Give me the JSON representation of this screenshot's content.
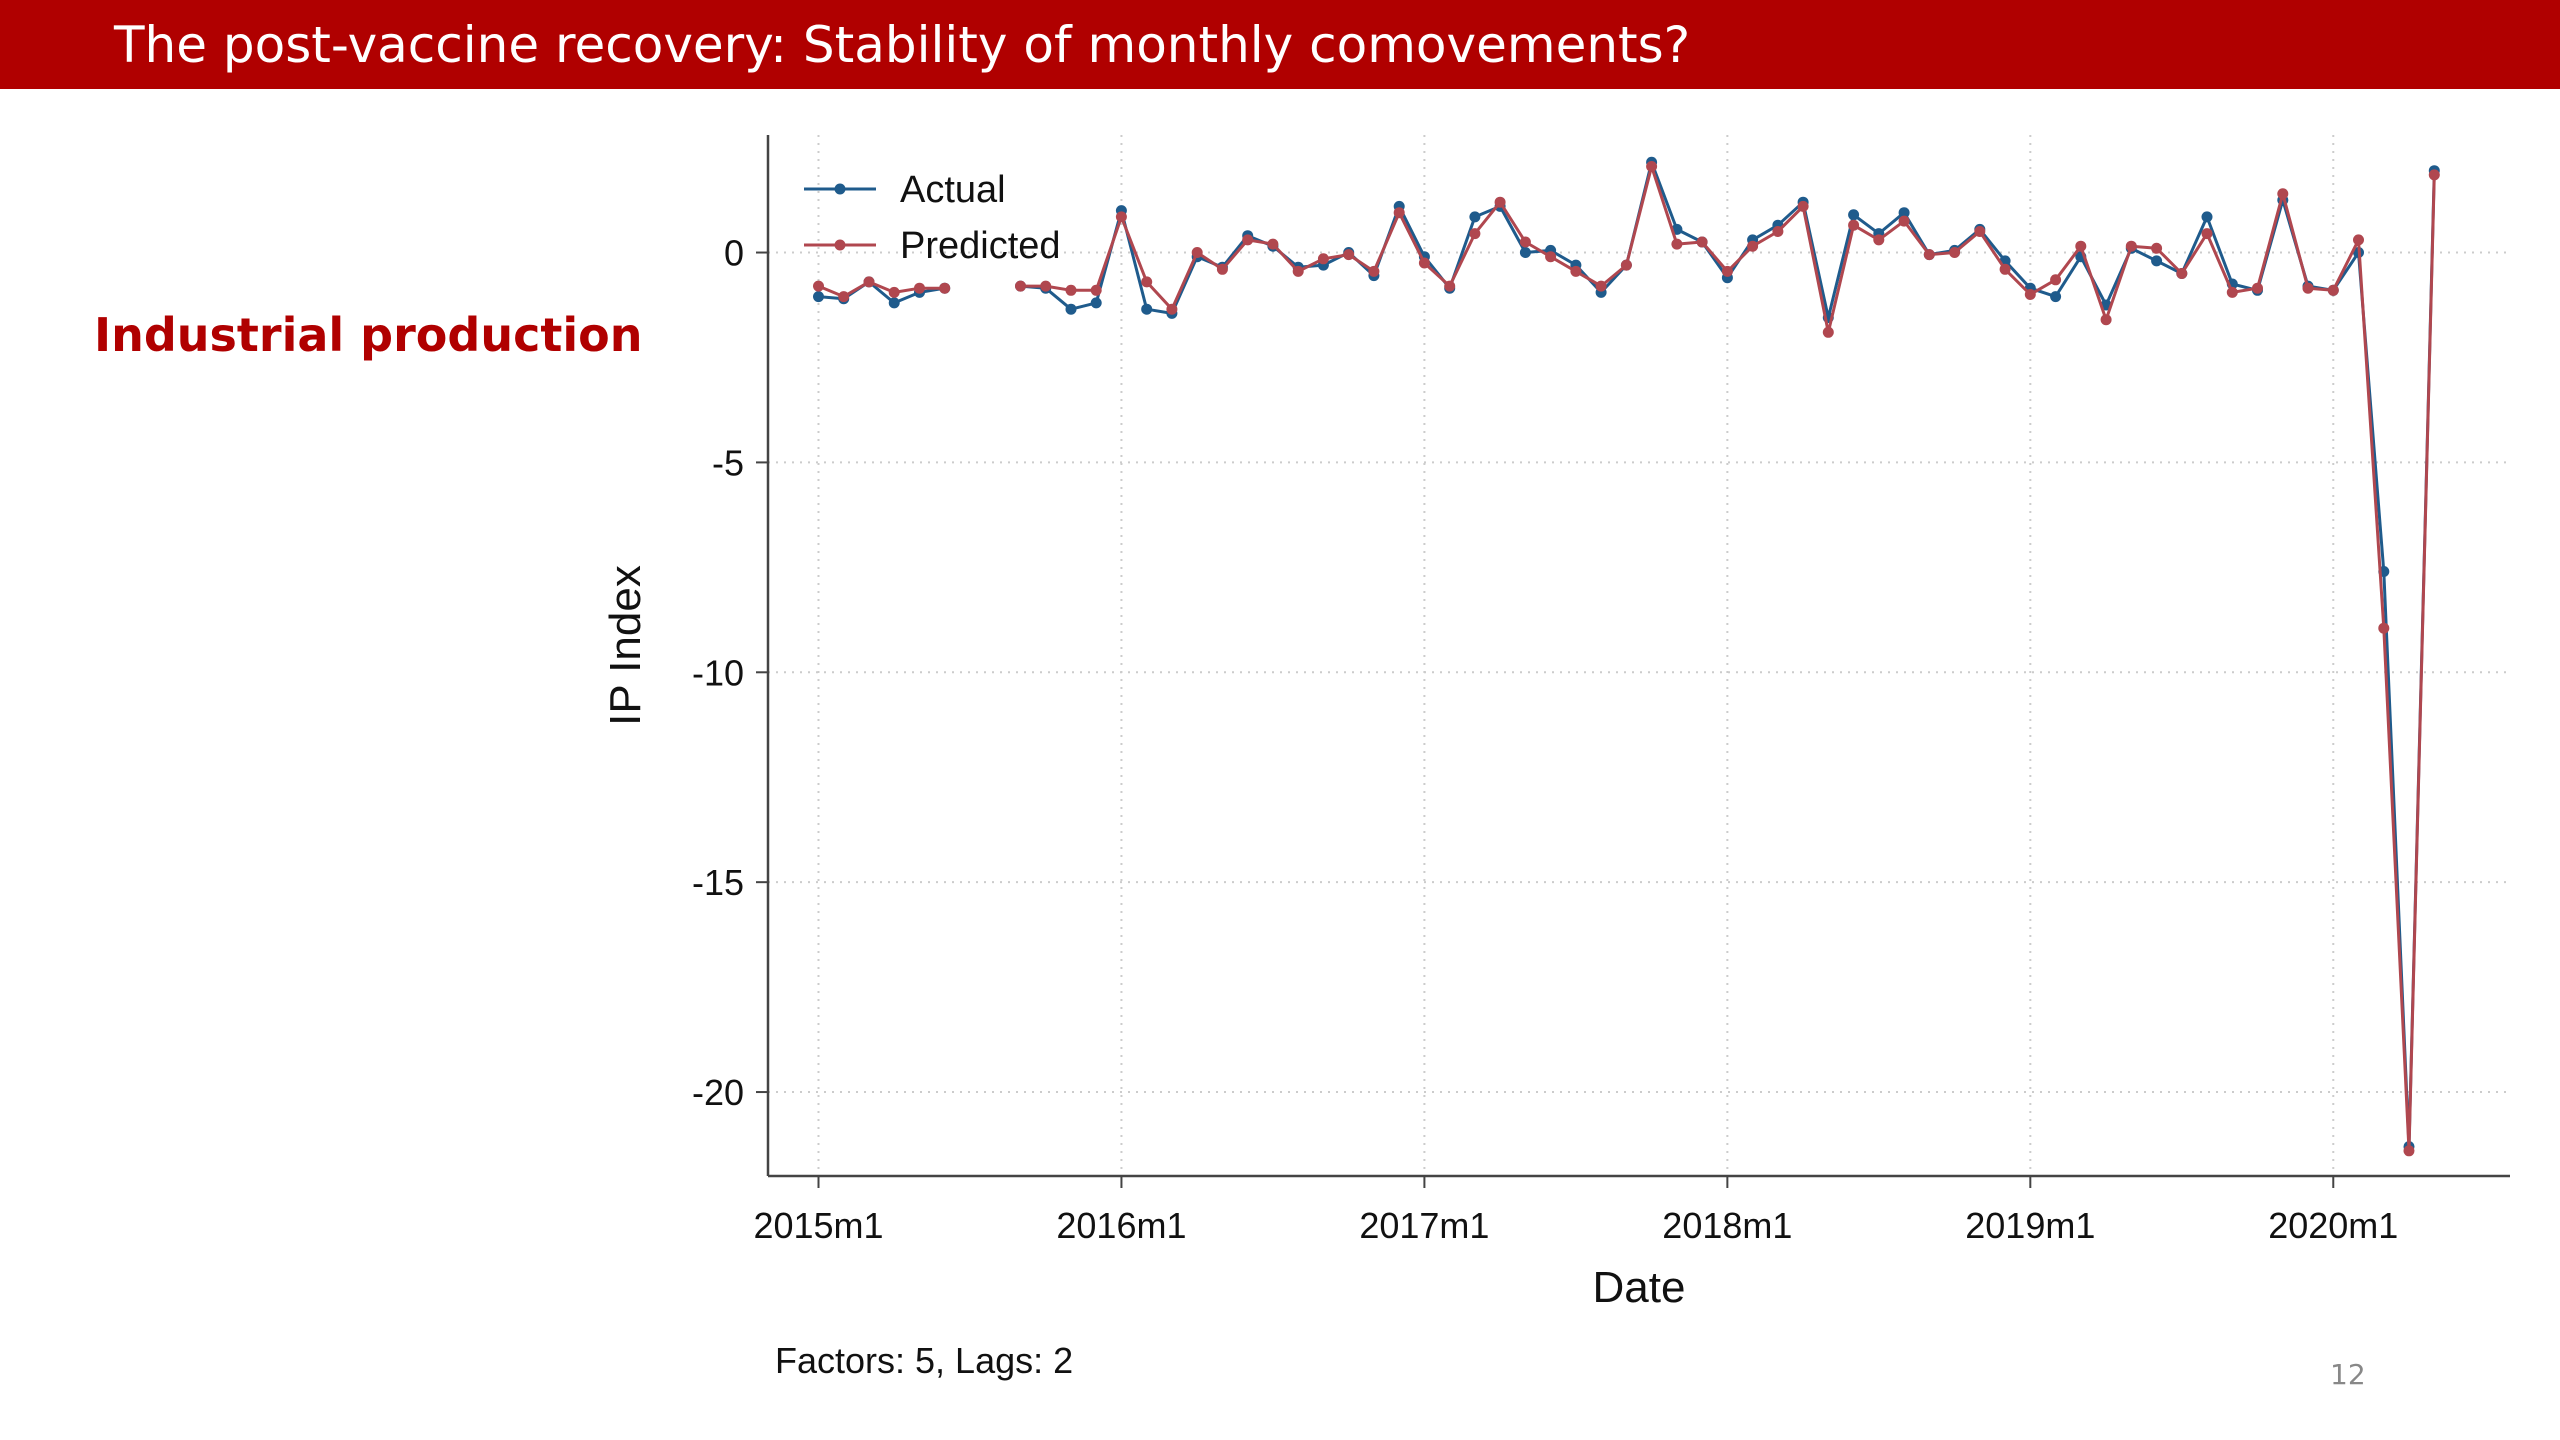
{
  "slide": {
    "title": "The post-vaccine recovery: Stability of monthly comovements?",
    "section_label": "Industrial production",
    "note": "Factors: 5, Lags: 2",
    "page_number": "12"
  },
  "colors": {
    "title_bar": "#b00000",
    "accent_text": "#b00000",
    "actual": "#1f5b8c",
    "predicted": "#b0474f",
    "grid": "#cccccc",
    "axis": "#444444"
  },
  "chart_data": {
    "type": "line",
    "xlabel": "Date",
    "ylabel": "IP Index",
    "x_ticks": [
      "2015m1",
      "2016m1",
      "2017m1",
      "2018m1",
      "2019m1",
      "2020m1"
    ],
    "y_ticks": [
      0,
      -5,
      -10,
      -15,
      -20
    ],
    "ylim": [
      -22,
      2.8
    ],
    "xlim": [
      "2014m11",
      "2020m8"
    ],
    "grid": true,
    "legend_position": "top-left",
    "x": [
      "2015m1",
      "2015m2",
      "2015m3",
      "2015m4",
      "2015m5",
      "2015m6",
      "2015m7",
      "2015m8",
      "2015m9",
      "2015m10",
      "2015m11",
      "2015m12",
      "2016m1",
      "2016m2",
      "2016m3",
      "2016m4",
      "2016m5",
      "2016m6",
      "2016m7",
      "2016m8",
      "2016m9",
      "2016m10",
      "2016m11",
      "2016m12",
      "2017m1",
      "2017m2",
      "2017m3",
      "2017m4",
      "2017m5",
      "2017m6",
      "2017m7",
      "2017m8",
      "2017m9",
      "2017m10",
      "2017m11",
      "2017m12",
      "2018m1",
      "2018m2",
      "2018m3",
      "2018m4",
      "2018m5",
      "2018m6",
      "2018m7",
      "2018m8",
      "2018m9",
      "2018m10",
      "2018m11",
      "2018m12",
      "2019m1",
      "2019m2",
      "2019m3",
      "2019m4",
      "2019m5",
      "2019m6",
      "2019m7",
      "2019m8",
      "2019m9",
      "2019m10",
      "2019m11",
      "2019m12",
      "2020m1",
      "2020m2",
      "2020m3",
      "2020m4",
      "2020m5"
    ],
    "series": [
      {
        "name": "Actual",
        "values": [
          -1.05,
          -1.1,
          -0.7,
          -1.2,
          -0.95,
          -0.85,
          null,
          null,
          -0.8,
          -0.85,
          -1.35,
          -1.2,
          1.0,
          -1.35,
          -1.45,
          -0.1,
          -0.35,
          0.4,
          0.15,
          -0.35,
          -0.3,
          0.0,
          -0.55,
          1.1,
          -0.1,
          -0.85,
          0.85,
          1.1,
          0.0,
          0.05,
          -0.3,
          -0.95,
          -0.3,
          2.15,
          0.55,
          0.25,
          -0.6,
          0.3,
          0.65,
          1.2,
          -1.55,
          0.9,
          0.45,
          0.95,
          -0.05,
          0.05,
          0.55,
          -0.2,
          -0.85,
          -1.05,
          -0.1,
          -1.25,
          0.1,
          -0.2,
          -0.5,
          0.85,
          -0.75,
          -0.9,
          1.25,
          -0.8,
          -0.9,
          0.0,
          -7.6,
          -21.3,
          1.95
        ]
      },
      {
        "name": "Predicted",
        "values": [
          -0.8,
          -1.05,
          -0.7,
          -0.95,
          -0.85,
          -0.85,
          null,
          null,
          -0.8,
          -0.8,
          -0.9,
          -0.9,
          0.85,
          -0.7,
          -1.35,
          0.0,
          -0.4,
          0.3,
          0.2,
          -0.45,
          -0.15,
          -0.05,
          -0.45,
          0.95,
          -0.25,
          -0.8,
          0.45,
          1.2,
          0.25,
          -0.1,
          -0.45,
          -0.8,
          -0.3,
          2.05,
          0.2,
          0.25,
          -0.45,
          0.15,
          0.5,
          1.1,
          -1.9,
          0.65,
          0.3,
          0.75,
          -0.05,
          0.0,
          0.5,
          -0.4,
          -1.0,
          -0.65,
          0.15,
          -1.6,
          0.15,
          0.1,
          -0.5,
          0.45,
          -0.95,
          -0.85,
          1.4,
          -0.85,
          -0.9,
          0.3,
          -8.95,
          -21.4,
          1.85
        ]
      }
    ]
  }
}
